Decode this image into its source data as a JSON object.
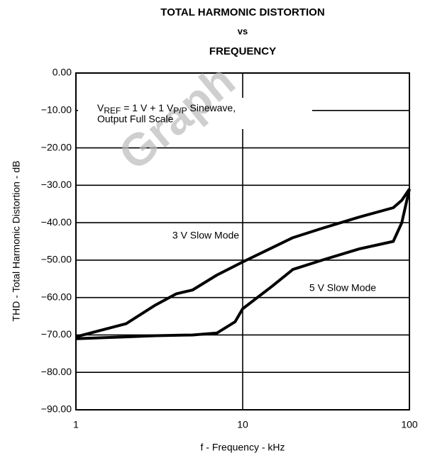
{
  "chart_data": {
    "type": "line",
    "title": [
      "TOTAL HARMONIC DISTORTION",
      "vs",
      "FREQUENCY"
    ],
    "xlabel": "f - Frequency - kHz",
    "ylabel": "THD - Total Harmonic Distortion - dB",
    "annotation": [
      "V",
      "REF",
      " = 1 V + 1 V",
      "P/P",
      " Sinewave,"
    ],
    "annotation_line2": "Output Full Scale",
    "watermark": "Graph",
    "xscale": "log",
    "grid": true,
    "xlim": [
      1,
      100
    ],
    "xticks": [
      1,
      10,
      100
    ],
    "ylim": [
      -90,
      0
    ],
    "yticks": [
      {
        "value": 0,
        "label": "0.00"
      },
      {
        "value": -10,
        "label": "−10.00"
      },
      {
        "value": -20,
        "label": "−20.00"
      },
      {
        "value": -30,
        "label": "−30.00"
      },
      {
        "value": -40,
        "label": "−40.00"
      },
      {
        "value": -50,
        "label": "−50.00"
      },
      {
        "value": -60,
        "label": "−60.00"
      },
      {
        "value": -70,
        "label": "−70.00"
      },
      {
        "value": -80,
        "label": "−80.00"
      },
      {
        "value": -90,
        "label": "−90.00"
      }
    ],
    "series": [
      {
        "name": "3 V Slow Mode",
        "color": "#000000",
        "x": [
          1,
          2,
          3,
          4,
          5,
          7,
          10,
          20,
          30,
          50,
          80,
          90,
          100
        ],
        "values": [
          -70.5,
          -67,
          -62,
          -59,
          -58,
          -54,
          -50.5,
          -44,
          -41.5,
          -38.5,
          -36,
          -34,
          -31
        ]
      },
      {
        "name": "5 V Slow Mode",
        "color": "#000000",
        "x": [
          1,
          2,
          3,
          5,
          7,
          9,
          10,
          15,
          20,
          30,
          50,
          80,
          90,
          100
        ],
        "values": [
          -71,
          -70.5,
          -70.2,
          -70,
          -69.5,
          -66.5,
          -63,
          -57,
          -52.5,
          -50,
          -47,
          -45,
          -40,
          -31
        ]
      }
    ]
  }
}
